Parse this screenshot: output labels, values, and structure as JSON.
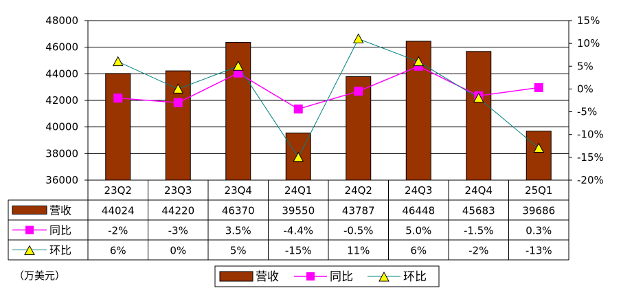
{
  "chart_data": {
    "type": "bar",
    "categories": [
      "23Q2",
      "23Q3",
      "23Q4",
      "24Q1",
      "24Q2",
      "24Q3",
      "24Q4",
      "25Q1"
    ],
    "series": [
      {
        "name": "营收",
        "kind": "bar",
        "axis": "left",
        "color": "#993300",
        "values": [
          44024,
          44220,
          46370,
          39550,
          43787,
          46448,
          45683,
          39686
        ],
        "table_labels": [
          "44024",
          "44220",
          "46370",
          "39550",
          "43787",
          "46448",
          "45683",
          "39686"
        ]
      },
      {
        "name": "同比",
        "kind": "line",
        "axis": "right",
        "color": "#FF00FF",
        "marker": "square",
        "values": [
          -2,
          -3,
          3.5,
          -4.4,
          -0.5,
          5.0,
          -1.5,
          0.3
        ],
        "table_labels": [
          "-2%",
          "-3%",
          "3.5%",
          "-4.4%",
          "-0.5%",
          "5.0%",
          "-1.5%",
          "0.3%"
        ]
      },
      {
        "name": "环比",
        "kind": "line",
        "axis": "right",
        "color": "#008080",
        "marker": "triangle",
        "marker_fill": "#FFFF00",
        "values": [
          6,
          0,
          5,
          -15,
          11,
          6,
          -2,
          -13
        ],
        "table_labels": [
          "6%",
          "0%",
          "5%",
          "-15%",
          "11%",
          "6%",
          "-2%",
          "-13%"
        ]
      }
    ],
    "left_axis": {
      "min": 36000,
      "max": 48000,
      "step": 2000,
      "tick_labels": [
        "36000",
        "38000",
        "40000",
        "42000",
        "44000",
        "46000",
        "48000"
      ]
    },
    "right_axis": {
      "min": -20,
      "max": 15,
      "step": 5,
      "tick_labels": [
        "-20%",
        "-15%",
        "-10%",
        "-5%",
        "0%",
        "5%",
        "10%",
        "15%"
      ]
    },
    "unit_label": "（万美元）",
    "grid": true,
    "data_table": true,
    "legend_position": "bottom"
  }
}
